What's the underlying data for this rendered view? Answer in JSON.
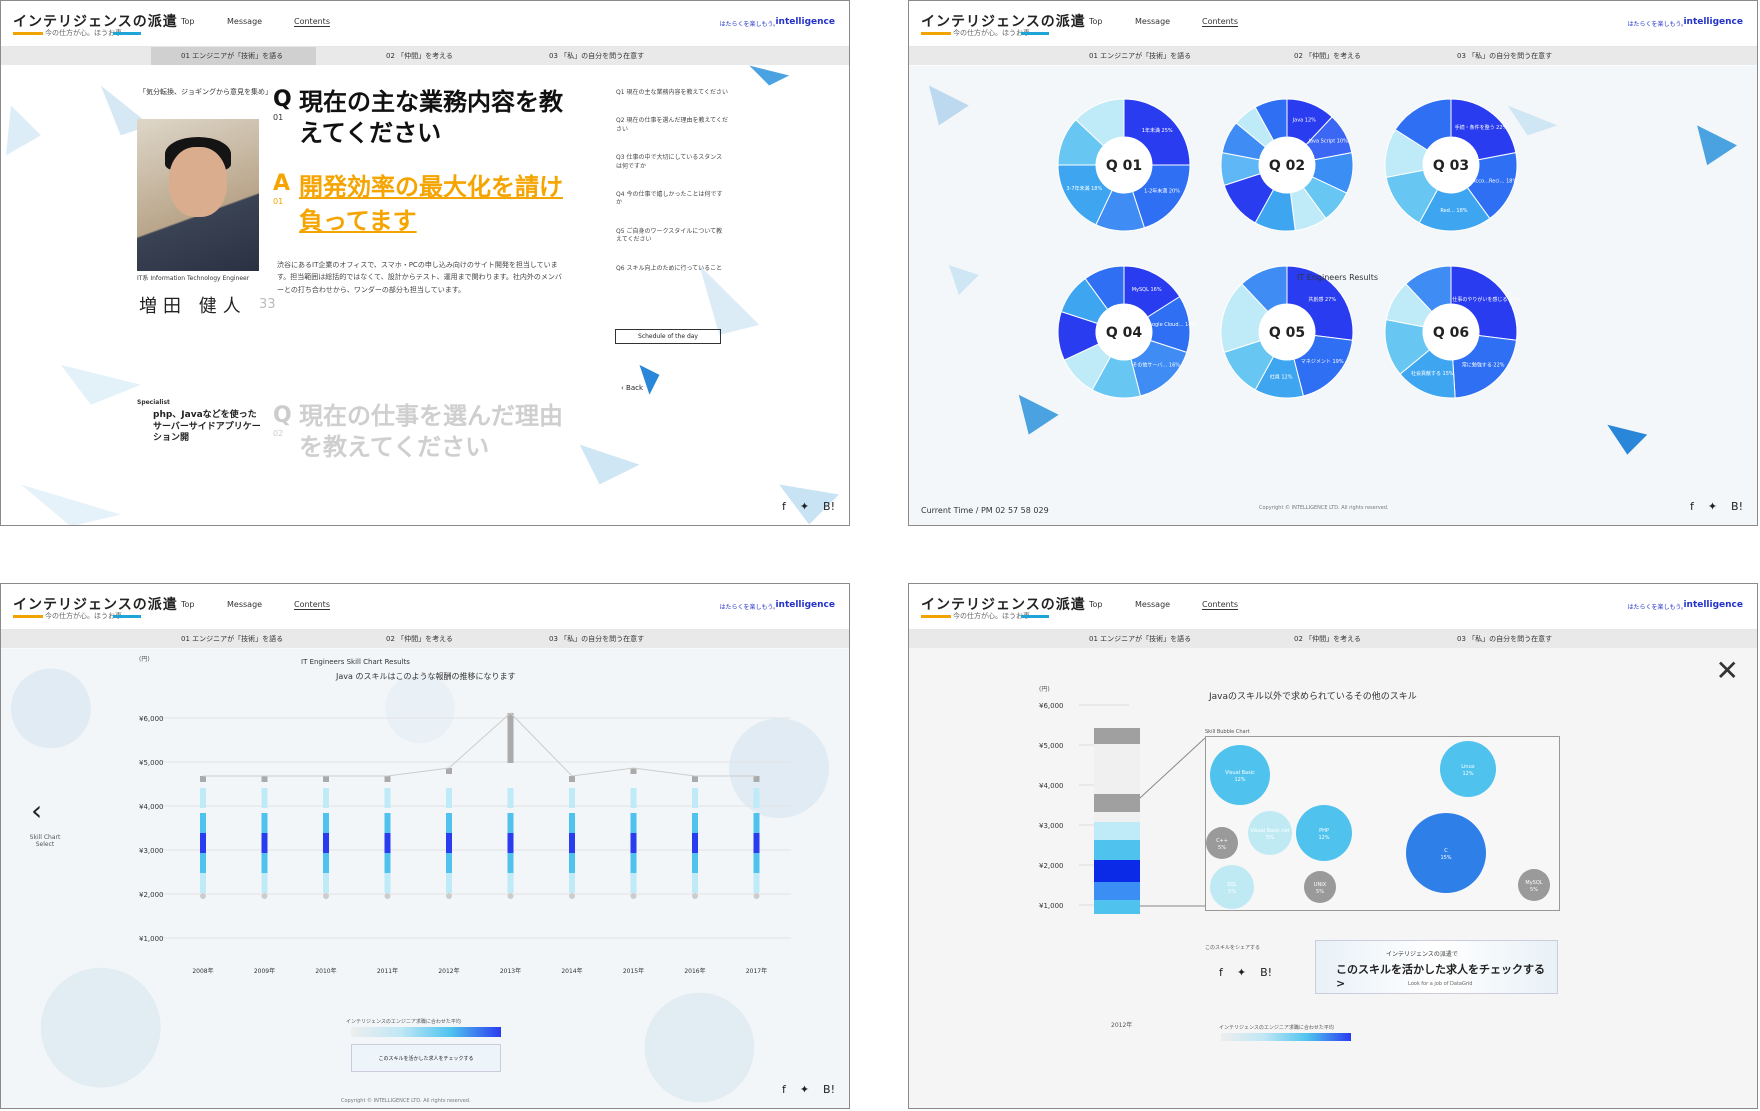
{
  "header": {
    "logo": "インテリジェンスの派遣",
    "logo_sub": "今の仕方が心。ほうお事",
    "nav": [
      "Top",
      "Message",
      "Contents"
    ],
    "brand": "intelligence",
    "brand_sub": "はたらくを楽しもう。"
  },
  "subnav": [
    "01 エンジニアが「技術」を語る",
    "02 「仲間」を考える",
    "03 「私」の自分を問う在意す"
  ],
  "panel1": {
    "q_title": "現在の主な業務内容を教えてください",
    "q_num": "01",
    "a_title": "開発効率の最大化を請け負ってます",
    "body": "渋谷にあるIT企業のオフィスで、スマホ・PCの申し込み向けのサイト開発を担当しています。担当範囲は総括的ではなくて、設計からテスト、運用まで関わります。社内外のメンバーとの打ち合わせから、ワンダーの部分も担当しています。",
    "company": "IT系 Information Technology Engineer",
    "name": "増田 健人",
    "age": "33",
    "specialist_label": "Specialist",
    "specialist": "php、Javaなどを使ったサーバーサイドアプリケーション開",
    "side_items": [
      "Q1 現在の主な業務内容を教えてください",
      "Q2 現在の仕事を選んだ理由を教えてください",
      "Q3 仕事の中で大切にしているスタンスは何ですか",
      "Q4 今の仕事で嬉しかったことは何ですか",
      "Q5 ご自身のワークスタイルについて教えてください",
      "Q6 スキル向上のために行っていること"
    ],
    "schedule_btn": "Schedule of the day",
    "back": "Back",
    "q2_title": "現在の仕事を選んだ理由を教えてください",
    "q2_num": "02"
  },
  "panel2": {
    "center_label": "IT Engineers Results",
    "footer_left": "Current Time / PM 02 57 58 029",
    "footer_copy": "Copyright © INTELLIGENCE LTD. All rights reserved.",
    "donuts": [
      {
        "label": "Q 01",
        "slices": [
          {
            "pct": 25,
            "text": "1年未満 25%",
            "color": "#2a3cf0"
          },
          {
            "pct": 20,
            "text": "1-2年未満 20%",
            "color": "#2f6ff4"
          },
          {
            "pct": 12,
            "color": "#3f8cf5"
          },
          {
            "pct": 18,
            "text": "3-7年未満 18%",
            "color": "#3ea6f0"
          },
          {
            "pct": 12,
            "color": "#67c6f2"
          },
          {
            "pct": 13,
            "color": "#bfeaf7"
          }
        ]
      },
      {
        "label": "Q 02",
        "slices": [
          {
            "pct": 12,
            "text": "Java 12%",
            "color": "#2a3cf0"
          },
          {
            "pct": 10,
            "text": "Java Script 10%",
            "color": "#3c66f4"
          },
          {
            "pct": 10,
            "color": "#3a8ef4"
          },
          {
            "pct": 8,
            "color": "#67c6f2"
          },
          {
            "pct": 8,
            "color": "#bfeaf7"
          },
          {
            "pct": 10,
            "color": "#3ea6f0"
          },
          {
            "pct": 12,
            "color": "#2a3cf0"
          },
          {
            "pct": 8,
            "color": "#5fb8f5"
          },
          {
            "pct": 8,
            "color": "#3f8cf5"
          },
          {
            "pct": 6,
            "color": "#bfeaf7"
          },
          {
            "pct": 8,
            "color": "#2f6ff4"
          }
        ]
      },
      {
        "label": "Q 03",
        "slices": [
          {
            "pct": 22,
            "text": "手続・条件を整う 22%",
            "color": "#2a3cf0"
          },
          {
            "pct": 18,
            "text": "Acco…Reci… 18%",
            "color": "#2f6ff4"
          },
          {
            "pct": 18,
            "text": "Red… 18%",
            "color": "#3ea6f0"
          },
          {
            "pct": 14,
            "color": "#67c6f2"
          },
          {
            "pct": 12,
            "color": "#bfeaf7"
          },
          {
            "pct": 16,
            "color": "#2f6ff4"
          }
        ]
      },
      {
        "label": "Q 04",
        "slices": [
          {
            "pct": 16,
            "text": "MySQL 16%",
            "color": "#2a3cf0"
          },
          {
            "pct": 14,
            "text": "Google Cloud… 14%",
            "color": "#2f6ff4"
          },
          {
            "pct": 16,
            "text": "その他サーバ… 16%",
            "color": "#3f8cf5"
          },
          {
            "pct": 12,
            "color": "#67c6f2"
          },
          {
            "pct": 10,
            "color": "#bfeaf7"
          },
          {
            "pct": 12,
            "color": "#2a3cf0"
          },
          {
            "pct": 10,
            "color": "#3ea6f0"
          },
          {
            "pct": 10,
            "color": "#2f6ff4"
          }
        ]
      },
      {
        "label": "Q 05",
        "slices": [
          {
            "pct": 27,
            "text": "共創感 27%",
            "color": "#2a3cf0"
          },
          {
            "pct": 19,
            "text": "マネジメント 19%",
            "color": "#2f6ff4"
          },
          {
            "pct": 12,
            "text": "社員 12%",
            "color": "#3ea6f0"
          },
          {
            "pct": 12,
            "color": "#67c6f2"
          },
          {
            "pct": 18,
            "color": "#bfeaf7"
          },
          {
            "pct": 12,
            "color": "#3f8cf5"
          }
        ]
      },
      {
        "label": "Q 06",
        "slices": [
          {
            "pct": 27,
            "text": "仕事のやりがいを感じる 27%",
            "color": "#2a3cf0"
          },
          {
            "pct": 22,
            "text": "常に勉強する 22%",
            "color": "#2f6ff4"
          },
          {
            "pct": 15,
            "text": "社会貢献する 15%",
            "color": "#3ea6f0"
          },
          {
            "pct": 14,
            "color": "#67c6f2"
          },
          {
            "pct": 10,
            "color": "#bfeaf7"
          },
          {
            "pct": 12,
            "color": "#3f8cf5"
          }
        ]
      }
    ]
  },
  "panel3": {
    "title_en": "IT Engineers Skill Chart Results",
    "title_ja": "Java のスキルはこのような報酬の推移になります",
    "yaxis_unit": "(円)",
    "yaxis": [
      "¥6,000",
      "¥5,000",
      "¥4,000",
      "¥3,000",
      "¥2,000",
      "¥1,000"
    ],
    "xaxis": [
      "2008年",
      "2009年",
      "2010年",
      "2011年",
      "2012年",
      "2013年",
      "2014年",
      "2015年",
      "2016年",
      "2017年"
    ],
    "left_nav": "Skill Chart Select",
    "legend_caption": "インテリジェンスのエンジニア求職に合わせた平均",
    "cta": "このスキルを活かした求人をチェックする",
    "copyright": "Copyright © INTELLIGENCE LTD. All rights reserved."
  },
  "panel4": {
    "title": "Javaのスキル以外で求められているその他のスキル",
    "box_label": "Skill Bubble Chart",
    "year": "2012年",
    "share_label": "このスキルをシェアする",
    "cta_small": "インテリジェンスの派遣で",
    "cta_main": "このスキルを活かした求人をチェックする >",
    "cta_en": "Look for a job of DataGrid",
    "legend_caption": "インテリジェンスのエンジニア求職に合わせた平均",
    "bubbles": [
      {
        "name": "Visual Basic",
        "pct": "12%",
        "color": "#4fc3ee"
      },
      {
        "name": "Linux",
        "pct": "12%",
        "color": "#4fc3ee"
      },
      {
        "name": "C++",
        "pct": "5%",
        "color": "#9a9a9a"
      },
      {
        "name": "Visual Basic.net",
        "pct": "5%",
        "color": "#bfeaf4"
      },
      {
        "name": "PHP",
        "pct": "12%",
        "color": "#4fc3ee"
      },
      {
        "name": "C",
        "pct": "15%",
        "color": "#2f7fe8"
      },
      {
        "name": "SQL",
        "pct": "5%",
        "color": "#bfeaf4"
      },
      {
        "name": "UNIX",
        "pct": "5%",
        "color": "#9a9a9a"
      },
      {
        "name": "MySQL",
        "pct": "5%",
        "color": "#9a9a9a"
      }
    ]
  }
}
